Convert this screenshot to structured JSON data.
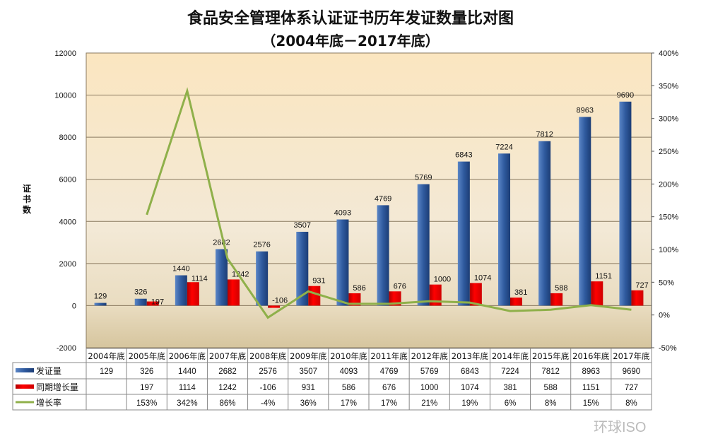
{
  "chart_data": {
    "type": "bar",
    "title": "食品安全管理体系认证证书历年发证数量比对图",
    "subtitle": "（2004年底－2017年底）",
    "ylabel": "证书数",
    "ylim": [
      -2000,
      12000
    ],
    "y_ticks": [
      "-2000",
      "0",
      "2000",
      "4000",
      "6000",
      "8000",
      "10000",
      "12000"
    ],
    "y2lim": [
      -50,
      400
    ],
    "y2_ticks": [
      "-50%",
      "0%",
      "50%",
      "100%",
      "150%",
      "200%",
      "250%",
      "300%",
      "350%",
      "400%"
    ],
    "grid": true,
    "legend": "table-bottom",
    "categories": [
      "2004年底",
      "2005年底",
      "2006年底",
      "2007年底",
      "2008年底",
      "2009年底",
      "2010年底",
      "2011年底",
      "2012年底",
      "2013年底",
      "2014年底",
      "2015年底",
      "2016年底",
      "2017年底"
    ],
    "series": [
      {
        "name": "发证量",
        "type": "bar",
        "color": "#2f5a9e",
        "values": [
          129,
          326,
          1440,
          2682,
          2576,
          3507,
          4093,
          4769,
          5769,
          6843,
          7224,
          7812,
          8963,
          9690
        ]
      },
      {
        "name": "同期增长量",
        "type": "bar",
        "color": "#e00000",
        "values": [
          null,
          197,
          1114,
          1242,
          -106,
          931,
          586,
          676,
          1000,
          1074,
          381,
          588,
          1151,
          727
        ]
      },
      {
        "name": "增长率",
        "type": "line",
        "axis": "right",
        "color": "#8fb04a",
        "values": [
          null,
          153,
          342,
          86,
          -4,
          36,
          17,
          17,
          21,
          19,
          6,
          8,
          15,
          8
        ],
        "labels": [
          "",
          "153%",
          "342%",
          "86%",
          "-4%",
          "36%",
          "17%",
          "17%",
          "21%",
          "19%",
          "6%",
          "8%",
          "15%",
          "8%"
        ]
      }
    ]
  },
  "watermark": "环球ISO"
}
